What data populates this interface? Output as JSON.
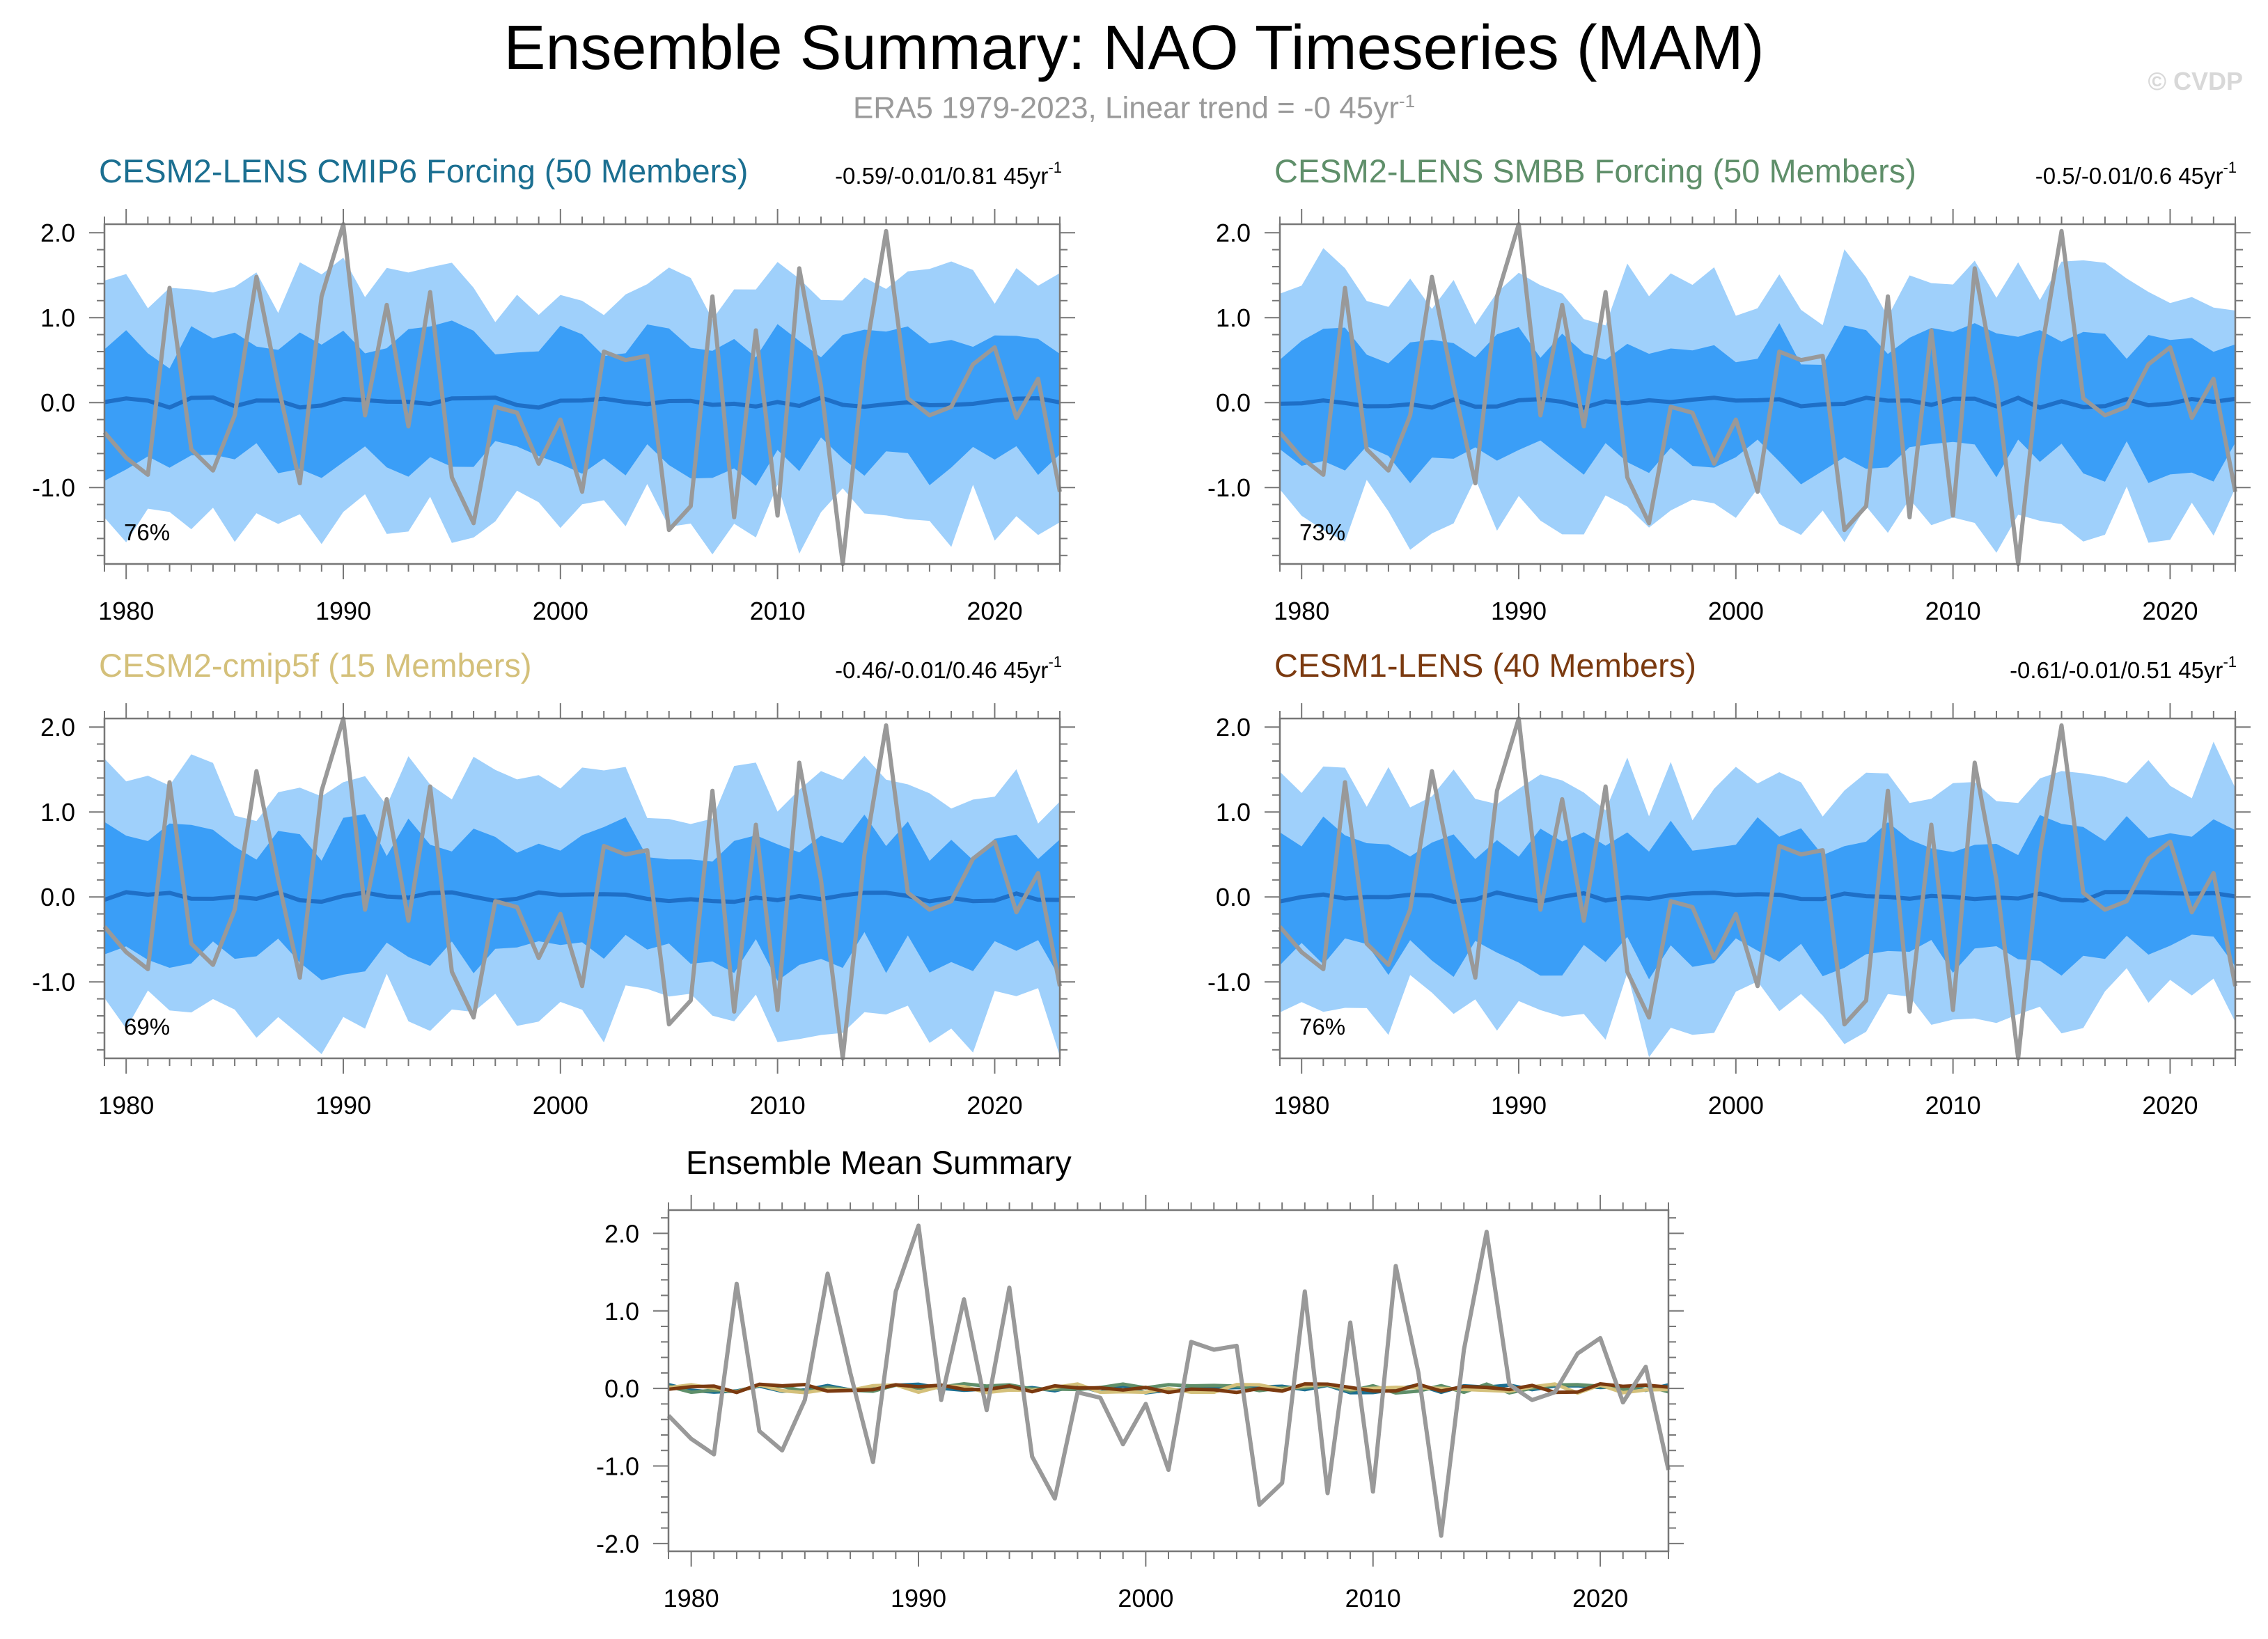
{
  "title": "Ensemble Summary: NAO Timeseries (MAM)",
  "subtitle": {
    "text": "ERA5 1979-2023, Linear trend = -0 45yr",
    "superscript": "-1"
  },
  "watermark": "© CVDP",
  "colors": {
    "outer_band": "#9fd0fb",
    "inner_band": "#3a9ef7",
    "ensemble_mean_line": "#1e6fc7",
    "observed_line": "#999999",
    "axis": "#777777"
  },
  "chart_data": [
    {
      "type": "line",
      "panel": "CESM2-LENS CMIP6 Forcing",
      "title": "CESM2-LENS CMIP6 Forcing (50 Members)",
      "title_color": "#1b6f91",
      "stats": "-0.59/-0.01/0.81 45yr",
      "stats_sup": "-1",
      "percent": "76%",
      "xlim": [
        1979,
        2023
      ],
      "ylim": [
        -1.9,
        2.1
      ],
      "xticks": [
        "1980",
        "1990",
        "2000",
        "2010",
        "2020"
      ],
      "yticks": [
        "2.0",
        "1.0",
        "0.0",
        "-1.0"
      ],
      "band_seed": 1
    },
    {
      "type": "line",
      "panel": "CESM2-LENS SMBB Forcing",
      "title": "CESM2-LENS SMBB Forcing (50 Members)",
      "title_color": "#5f8f6a",
      "stats": "-0.5/-0.01/0.6 45yr",
      "stats_sup": "-1",
      "percent": "73%",
      "xlim": [
        1979,
        2023
      ],
      "ylim": [
        -1.9,
        2.1
      ],
      "xticks": [
        "1980",
        "1990",
        "2000",
        "2010",
        "2020"
      ],
      "yticks": [
        "2.0",
        "1.0",
        "0.0",
        "-1.0"
      ],
      "band_seed": 2
    },
    {
      "type": "line",
      "panel": "CESM2-cmip5f",
      "title": "CESM2-cmip5f (15 Members)",
      "title_color": "#d4c07a",
      "stats": "-0.46/-0.01/0.46 45yr",
      "stats_sup": "-1",
      "percent": "69%",
      "xlim": [
        1979,
        2023
      ],
      "ylim": [
        -1.9,
        2.1
      ],
      "xticks": [
        "1980",
        "1990",
        "2000",
        "2010",
        "2020"
      ],
      "yticks": [
        "2.0",
        "1.0",
        "0.0",
        "-1.0"
      ],
      "band_seed": 3
    },
    {
      "type": "line",
      "panel": "CESM1-LENS",
      "title": "CESM1-LENS (40 Members)",
      "title_color": "#7b3a10",
      "stats": "-0.61/-0.01/0.51 45yr",
      "stats_sup": "-1",
      "percent": "76%",
      "xlim": [
        1979,
        2023
      ],
      "ylim": [
        -1.9,
        2.1
      ],
      "xticks": [
        "1980",
        "1990",
        "2000",
        "2010",
        "2020"
      ],
      "yticks": [
        "2.0",
        "1.0",
        "0.0",
        "-1.0"
      ],
      "band_seed": 4
    },
    {
      "type": "line",
      "panel": "Ensemble Mean Summary",
      "title": "Ensemble Mean Summary",
      "title_color": "#000000",
      "xlim": [
        1979,
        2023
      ],
      "ylim": [
        -2.1,
        2.3
      ],
      "xticks": [
        "1980",
        "1990",
        "2000",
        "2010",
        "2020"
      ],
      "yticks": [
        "2.0",
        "1.0",
        "0.0",
        "-1.0",
        "-2.0"
      ],
      "mean_series": [
        {
          "name": "CESM2-LENS CMIP6 Forcing",
          "color": "#1b6f91"
        },
        {
          "name": "CESM2-LENS SMBB Forcing",
          "color": "#5f8f6a"
        },
        {
          "name": "CESM2-cmip5f",
          "color": "#d4c07a"
        },
        {
          "name": "CESM1-LENS",
          "color": "#7b3a10"
        }
      ]
    }
  ],
  "observed": {
    "name": "ERA5",
    "years": [
      1979,
      1980,
      1981,
      1982,
      1983,
      1984,
      1985,
      1986,
      1987,
      1988,
      1989,
      1990,
      1991,
      1992,
      1993,
      1994,
      1995,
      1996,
      1997,
      1998,
      1999,
      2000,
      2001,
      2002,
      2003,
      2004,
      2005,
      2006,
      2007,
      2008,
      2009,
      2010,
      2011,
      2012,
      2013,
      2014,
      2015,
      2016,
      2017,
      2018,
      2019,
      2020,
      2021,
      2022,
      2023
    ],
    "values": [
      -0.35,
      -0.65,
      -0.85,
      1.35,
      -0.55,
      -0.8,
      -0.15,
      1.48,
      0.2,
      -0.95,
      1.25,
      2.1,
      -0.15,
      1.15,
      -0.28,
      1.3,
      -0.88,
      -1.42,
      -0.05,
      -0.12,
      -0.72,
      -0.2,
      -1.05,
      0.6,
      0.5,
      0.55,
      -1.5,
      -1.22,
      1.25,
      -1.35,
      0.85,
      -1.33,
      1.58,
      0.2,
      -1.9,
      0.5,
      2.02,
      0.05,
      -0.15,
      -0.05,
      0.45,
      0.65,
      -0.18,
      0.28,
      -1.05
    ]
  }
}
